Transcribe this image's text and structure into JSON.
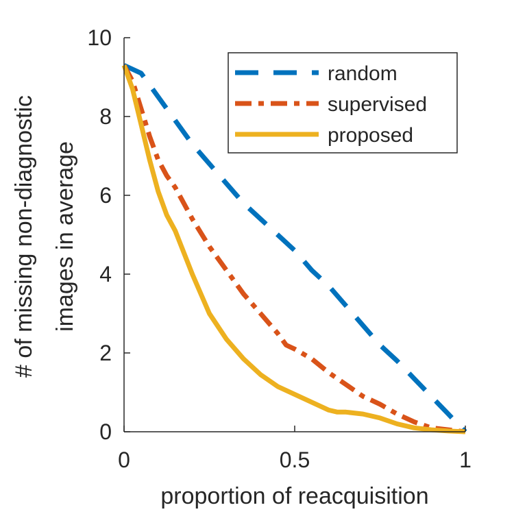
{
  "chart_data": {
    "type": "line",
    "title": "",
    "xlabel": "proportion of reacquisition",
    "ylabel_lines": [
      "# of missing non-diagnostic",
      "images in average"
    ],
    "xlim": [
      0,
      1
    ],
    "ylim": [
      0,
      10
    ],
    "xticks": [
      0,
      0.5,
      1
    ],
    "xtick_labels": [
      "0",
      "0.5",
      "1"
    ],
    "yticks": [
      0,
      2,
      4,
      6,
      8,
      10
    ],
    "ytick_labels": [
      "0",
      "2",
      "4",
      "6",
      "8",
      "10"
    ],
    "grid": false,
    "legend_position": "top-right",
    "series": [
      {
        "name": "random",
        "color": "#0072BD",
        "style": "dashed",
        "x": [
          0,
          0.05,
          0.1,
          0.15,
          0.2,
          0.25,
          0.3,
          0.35,
          0.4,
          0.45,
          0.5,
          0.55,
          0.6,
          0.65,
          0.7,
          0.75,
          0.8,
          0.85,
          0.9,
          0.95,
          1.0
        ],
        "y": [
          9.3,
          9.1,
          8.5,
          7.9,
          7.3,
          6.8,
          6.3,
          5.8,
          5.4,
          5.0,
          4.6,
          4.1,
          3.7,
          3.2,
          2.7,
          2.2,
          1.8,
          1.35,
          0.9,
          0.45,
          0.0
        ]
      },
      {
        "name": "supervised",
        "color": "#D95319",
        "style": "dashdot",
        "x": [
          0,
          0.025,
          0.05,
          0.075,
          0.1,
          0.125,
          0.15,
          0.2,
          0.25,
          0.3,
          0.35,
          0.4,
          0.45,
          0.475,
          0.5,
          0.55,
          0.6,
          0.65,
          0.7,
          0.75,
          0.8,
          0.85,
          0.9,
          0.95,
          1.0
        ],
        "y": [
          9.3,
          8.9,
          8.2,
          7.5,
          6.9,
          6.5,
          6.2,
          5.4,
          4.7,
          4.1,
          3.5,
          3.0,
          2.5,
          2.2,
          2.1,
          1.85,
          1.5,
          1.2,
          0.9,
          0.7,
          0.45,
          0.25,
          0.1,
          0.05,
          0.0
        ]
      },
      {
        "name": "proposed",
        "color": "#EDB120",
        "style": "solid",
        "x": [
          0,
          0.025,
          0.05,
          0.075,
          0.1,
          0.125,
          0.15,
          0.2,
          0.25,
          0.3,
          0.35,
          0.4,
          0.45,
          0.5,
          0.55,
          0.6,
          0.625,
          0.65,
          0.7,
          0.75,
          0.8,
          0.85,
          0.9,
          0.95,
          1.0
        ],
        "y": [
          9.3,
          8.7,
          7.8,
          6.9,
          6.1,
          5.5,
          5.1,
          4.0,
          3.0,
          2.35,
          1.85,
          1.45,
          1.15,
          0.95,
          0.75,
          0.55,
          0.5,
          0.5,
          0.45,
          0.35,
          0.2,
          0.1,
          0.05,
          0.02,
          0.0
        ]
      }
    ]
  }
}
